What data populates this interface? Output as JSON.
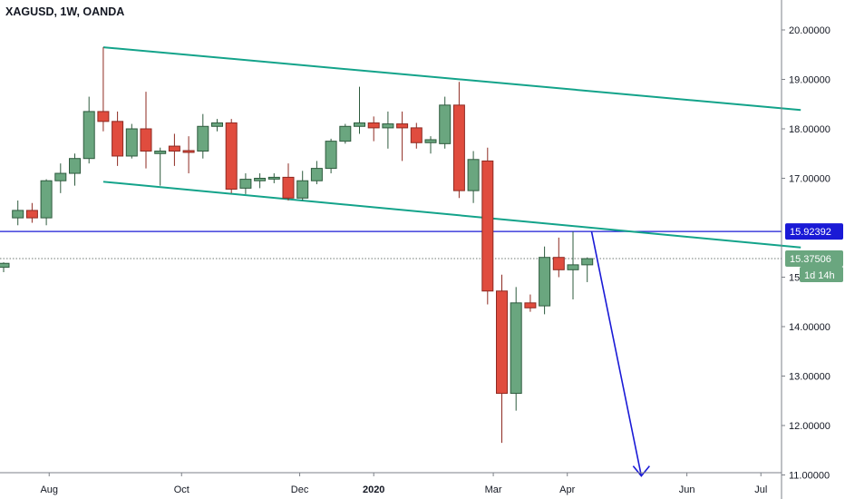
{
  "symbol_header": "XAGUSD, 1W, OANDA",
  "colors": {
    "up": "#6aa67f",
    "up_border": "#2e5b3e",
    "down": "#e04c3e",
    "down_border": "#8e2a22",
    "channel": "#13a38a",
    "hline": "#1a1ad6",
    "projection": "#1a1ad6",
    "last_price_line": "#6f7a75",
    "badge_blue": "#1a1ad6",
    "badge_green": "#6aa67f",
    "axis": "#7d8188"
  },
  "price_axis": {
    "labels": [
      "20.00000",
      "19.00000",
      "18.00000",
      "17.00000",
      "15.00000",
      "14.00000",
      "13.00000",
      "12.00000",
      "11.00000"
    ]
  },
  "time_axis": {
    "labels": [
      "Aug",
      "Oct",
      "Dec",
      "2020",
      "Mar",
      "Apr",
      "Jun",
      "Jul"
    ],
    "bold": [
      "2020"
    ]
  },
  "badges": {
    "hline_price": "15.92392",
    "last_price": "15.37506",
    "countdown": "1d 14h"
  },
  "chart_data": {
    "type": "candlestick",
    "title": "XAGUSD, 1W, OANDA",
    "ylim": [
      10.9,
      20.9
    ],
    "y_ticks": [
      20,
      19,
      18,
      17,
      15,
      14,
      13,
      12,
      11
    ],
    "x_ticks": [
      "Aug",
      "Oct",
      "Dec",
      "2020",
      "Mar",
      "Apr",
      "Jun",
      "Jul"
    ],
    "candles": [
      {
        "o": 15.28,
        "h": 15.3,
        "l": 15.1,
        "c": 15.2,
        "dir": "up"
      },
      {
        "o": 16.2,
        "h": 16.55,
        "l": 16.05,
        "c": 16.35,
        "dir": "up"
      },
      {
        "o": 16.35,
        "h": 16.5,
        "l": 16.1,
        "c": 16.2,
        "dir": "down"
      },
      {
        "o": 16.2,
        "h": 16.98,
        "l": 16.05,
        "c": 16.95,
        "dir": "up"
      },
      {
        "o": 16.95,
        "h": 17.3,
        "l": 16.7,
        "c": 17.1,
        "dir": "up"
      },
      {
        "o": 17.1,
        "h": 17.5,
        "l": 16.85,
        "c": 17.4,
        "dir": "up"
      },
      {
        "o": 17.4,
        "h": 18.65,
        "l": 17.3,
        "c": 18.35,
        "dir": "up"
      },
      {
        "o": 18.35,
        "h": 19.65,
        "l": 17.95,
        "c": 18.15,
        "dir": "down"
      },
      {
        "o": 18.15,
        "h": 18.35,
        "l": 17.25,
        "c": 17.45,
        "dir": "down"
      },
      {
        "o": 17.45,
        "h": 18.1,
        "l": 17.4,
        "c": 18.0,
        "dir": "up"
      },
      {
        "o": 18.0,
        "h": 18.75,
        "l": 17.2,
        "c": 17.55,
        "dir": "down"
      },
      {
        "o": 17.5,
        "h": 17.62,
        "l": 16.85,
        "c": 17.55,
        "dir": "up"
      },
      {
        "o": 17.65,
        "h": 17.9,
        "l": 17.25,
        "c": 17.55,
        "dir": "down"
      },
      {
        "o": 17.56,
        "h": 17.85,
        "l": 17.1,
        "c": 17.54,
        "dir": "down"
      },
      {
        "o": 17.55,
        "h": 18.3,
        "l": 17.4,
        "c": 18.05,
        "dir": "up"
      },
      {
        "o": 18.05,
        "h": 18.2,
        "l": 17.95,
        "c": 18.12,
        "dir": "up"
      },
      {
        "o": 18.12,
        "h": 18.2,
        "l": 16.7,
        "c": 16.78,
        "dir": "down"
      },
      {
        "o": 16.8,
        "h": 17.1,
        "l": 16.68,
        "c": 16.98,
        "dir": "up"
      },
      {
        "o": 16.95,
        "h": 17.1,
        "l": 16.8,
        "c": 17.0,
        "dir": "up"
      },
      {
        "o": 17.0,
        "h": 17.1,
        "l": 16.9,
        "c": 17.02,
        "dir": "up"
      },
      {
        "o": 17.02,
        "h": 17.3,
        "l": 16.55,
        "c": 16.6,
        "dir": "down"
      },
      {
        "o": 16.6,
        "h": 17.15,
        "l": 16.55,
        "c": 16.95,
        "dir": "up"
      },
      {
        "o": 16.95,
        "h": 17.35,
        "l": 16.88,
        "c": 17.2,
        "dir": "up"
      },
      {
        "o": 17.2,
        "h": 17.8,
        "l": 17.1,
        "c": 17.75,
        "dir": "up"
      },
      {
        "o": 17.75,
        "h": 18.1,
        "l": 17.7,
        "c": 18.05,
        "dir": "up"
      },
      {
        "o": 18.05,
        "h": 18.85,
        "l": 17.9,
        "c": 18.12,
        "dir": "up"
      },
      {
        "o": 18.12,
        "h": 18.25,
        "l": 17.75,
        "c": 18.02,
        "dir": "down"
      },
      {
        "o": 18.02,
        "h": 18.35,
        "l": 17.6,
        "c": 18.1,
        "dir": "up"
      },
      {
        "o": 18.1,
        "h": 18.35,
        "l": 17.35,
        "c": 18.02,
        "dir": "down"
      },
      {
        "o": 18.02,
        "h": 18.12,
        "l": 17.6,
        "c": 17.72,
        "dir": "down"
      },
      {
        "o": 17.72,
        "h": 17.85,
        "l": 17.5,
        "c": 17.78,
        "dir": "up"
      },
      {
        "o": 17.7,
        "h": 18.65,
        "l": 17.6,
        "c": 18.48,
        "dir": "up"
      },
      {
        "o": 18.48,
        "h": 18.95,
        "l": 16.6,
        "c": 16.75,
        "dir": "down"
      },
      {
        "o": 16.75,
        "h": 17.55,
        "l": 16.5,
        "c": 17.38,
        "dir": "up"
      },
      {
        "o": 17.35,
        "h": 17.62,
        "l": 14.45,
        "c": 14.72,
        "dir": "down"
      },
      {
        "o": 14.72,
        "h": 15.05,
        "l": 11.65,
        "c": 12.65,
        "dir": "down"
      },
      {
        "o": 12.65,
        "h": 14.8,
        "l": 12.3,
        "c": 14.48,
        "dir": "up"
      },
      {
        "o": 14.48,
        "h": 14.65,
        "l": 14.3,
        "c": 14.38,
        "dir": "down"
      },
      {
        "o": 14.42,
        "h": 15.62,
        "l": 14.25,
        "c": 15.4,
        "dir": "up"
      },
      {
        "o": 15.4,
        "h": 15.8,
        "l": 15.0,
        "c": 15.15,
        "dir": "down"
      },
      {
        "o": 15.15,
        "h": 15.92,
        "l": 14.55,
        "c": 15.25,
        "dir": "up"
      },
      {
        "o": 15.25,
        "h": 15.4,
        "l": 14.9,
        "c": 15.375,
        "dir": "up"
      }
    ],
    "channel_upper": {
      "from": {
        "bar": 7,
        "price": 19.65
      },
      "to": {
        "bar": 56,
        "price": 18.38
      }
    },
    "channel_lower": {
      "from": {
        "bar": 7,
        "price": 16.93
      },
      "to": {
        "bar": 56,
        "price": 15.6
      }
    },
    "horizontal_line": 15.92392,
    "last_price": 15.37506,
    "projection": {
      "from": {
        "bar": 41.3,
        "price": 15.93
      },
      "to": {
        "bar": 44.8,
        "price": 10.98
      }
    }
  }
}
